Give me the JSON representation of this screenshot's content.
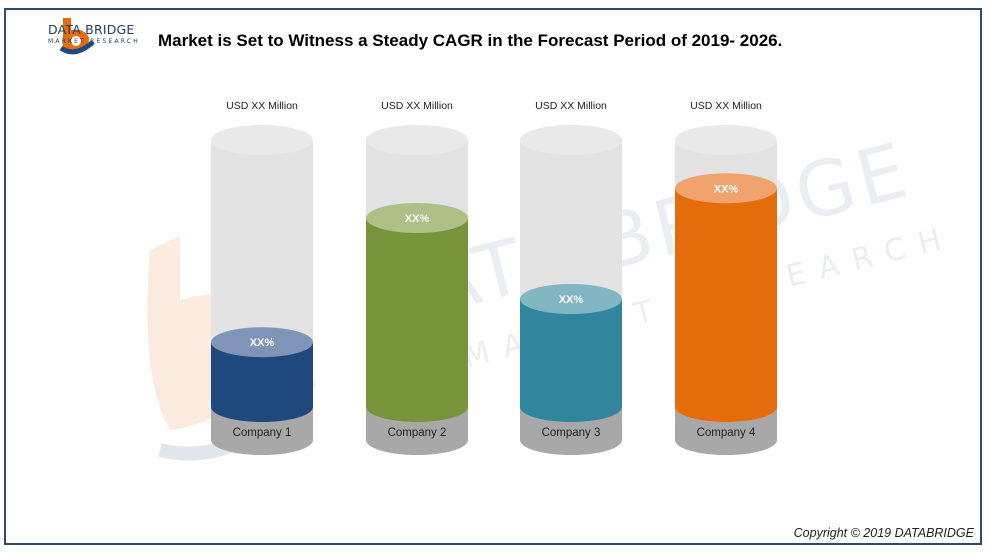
{
  "brand": {
    "name": "DATA BRIDGE",
    "tagline": "MARKET RESEARCH",
    "watermark_main": "DATA BRIDGE",
    "watermark_sub": "MARKET RESEARCH"
  },
  "title": "Market is Set to Witness a Steady CAGR in the Forecast Period of 2019- 2026.",
  "copyright": "Copyright © 2019 DATABRIDGE",
  "colors": {
    "frame": "#2e4a6b",
    "tube": "#e3e3e3",
    "base": "#a8a8a8"
  },
  "chart_data": {
    "type": "bar",
    "categories": [
      "Company 1",
      "Company 2",
      "Company 3",
      "Company 4"
    ],
    "values": [
      24,
      70,
      40,
      81
    ],
    "value_labels": [
      "XX%",
      "XX%",
      "XX%",
      "XX%"
    ],
    "top_labels": [
      "USD XX Million",
      "USD XX Million",
      "USD XX Million",
      "USD XX Million"
    ],
    "fill_colors": [
      "#1f497d",
      "#77933c",
      "#31859c",
      "#e46c0a"
    ],
    "cap_colors": [
      "#7f95b8",
      "#adc187",
      "#82b6c3",
      "#f0a46c"
    ],
    "ylim": [
      0,
      100
    ],
    "grid": false
  }
}
